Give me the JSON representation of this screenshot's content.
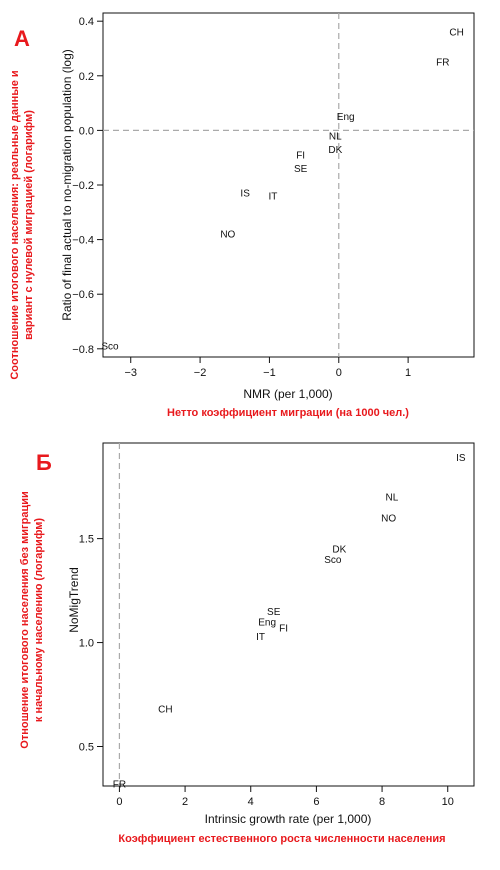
{
  "colors": {
    "annotation": "#e8191d",
    "refline": "#aaaaaa",
    "text": "#111111"
  },
  "chart_data": [
    {
      "type": "scatter",
      "panel_label": "А",
      "xlabel": "NMR (per 1,000)",
      "ylabel": "Ratio of final actual to no-migration population (log)",
      "xlabel_ru": "Нетто коэффициент миграции (на 1000 чел.)",
      "ylabel_ru": [
        "Соотношение итогового населения: реальные данные и",
        "вариант с нулевой миграцией (логарифм)"
      ],
      "xlim": [
        -3.4,
        1.95
      ],
      "ylim": [
        -0.83,
        0.43
      ],
      "xticks": [
        -3,
        -2,
        -1,
        0,
        1
      ],
      "yticks": [
        -0.8,
        -0.6,
        -0.4,
        -0.2,
        0.0,
        0.2,
        0.4
      ],
      "xtick_labels": [
        "−3",
        "−2",
        "−1",
        "0",
        "1"
      ],
      "ytick_labels": [
        "−0.8",
        "−0.6",
        "−0.4",
        "−0.2",
        "0.0",
        "0.2",
        "0.4"
      ],
      "ref_lines": {
        "x": 0,
        "y": 0
      },
      "points": [
        {
          "label": "CH",
          "x": 1.7,
          "y": 0.36
        },
        {
          "label": "FR",
          "x": 1.5,
          "y": 0.25
        },
        {
          "label": "Eng",
          "x": 0.1,
          "y": 0.05
        },
        {
          "label": "NL",
          "x": -0.05,
          "y": -0.02
        },
        {
          "label": "DK",
          "x": -0.05,
          "y": -0.07
        },
        {
          "label": "FI",
          "x": -0.55,
          "y": -0.09
        },
        {
          "label": "SE",
          "x": -0.55,
          "y": -0.14
        },
        {
          "label": "IS",
          "x": -1.35,
          "y": -0.23
        },
        {
          "label": "IT",
          "x": -0.95,
          "y": -0.24
        },
        {
          "label": "NO",
          "x": -1.6,
          "y": -0.38
        },
        {
          "label": "Sco",
          "x": -3.3,
          "y": -0.79
        }
      ]
    },
    {
      "type": "scatter",
      "panel_label": "Б",
      "xlabel": "Intrinsic growth rate (per 1,000)",
      "ylabel": "NoMigTrend",
      "xlabel_ru": "Коэффициент естественного роста численности населения",
      "ylabel_ru": [
        "Отношение итогового населения без миграции",
        "к начальному населению (логарифм)"
      ],
      "xlim": [
        -0.5,
        10.8
      ],
      "ylim": [
        0.31,
        1.96
      ],
      "xticks": [
        0,
        2,
        4,
        6,
        8,
        10
      ],
      "yticks": [
        0.5,
        1.0,
        1.5
      ],
      "xtick_labels": [
        "0",
        "2",
        "4",
        "6",
        "8",
        "10"
      ],
      "ytick_labels": [
        "0.5",
        "1.0",
        "1.5"
      ],
      "ref_lines": {
        "x": 0
      },
      "points": [
        {
          "label": "IS",
          "x": 10.4,
          "y": 1.89
        },
        {
          "label": "NL",
          "x": 8.3,
          "y": 1.7
        },
        {
          "label": "NO",
          "x": 8.2,
          "y": 1.6
        },
        {
          "label": "DK",
          "x": 6.7,
          "y": 1.45
        },
        {
          "label": "Sco",
          "x": 6.5,
          "y": 1.4
        },
        {
          "label": "SE",
          "x": 4.7,
          "y": 1.15
        },
        {
          "label": "Eng",
          "x": 4.5,
          "y": 1.1
        },
        {
          "label": "FI",
          "x": 5.0,
          "y": 1.07
        },
        {
          "label": "IT",
          "x": 4.3,
          "y": 1.03
        },
        {
          "label": "CH",
          "x": 1.4,
          "y": 0.68
        },
        {
          "label": "FR",
          "x": 0.0,
          "y": 0.32
        }
      ]
    }
  ]
}
